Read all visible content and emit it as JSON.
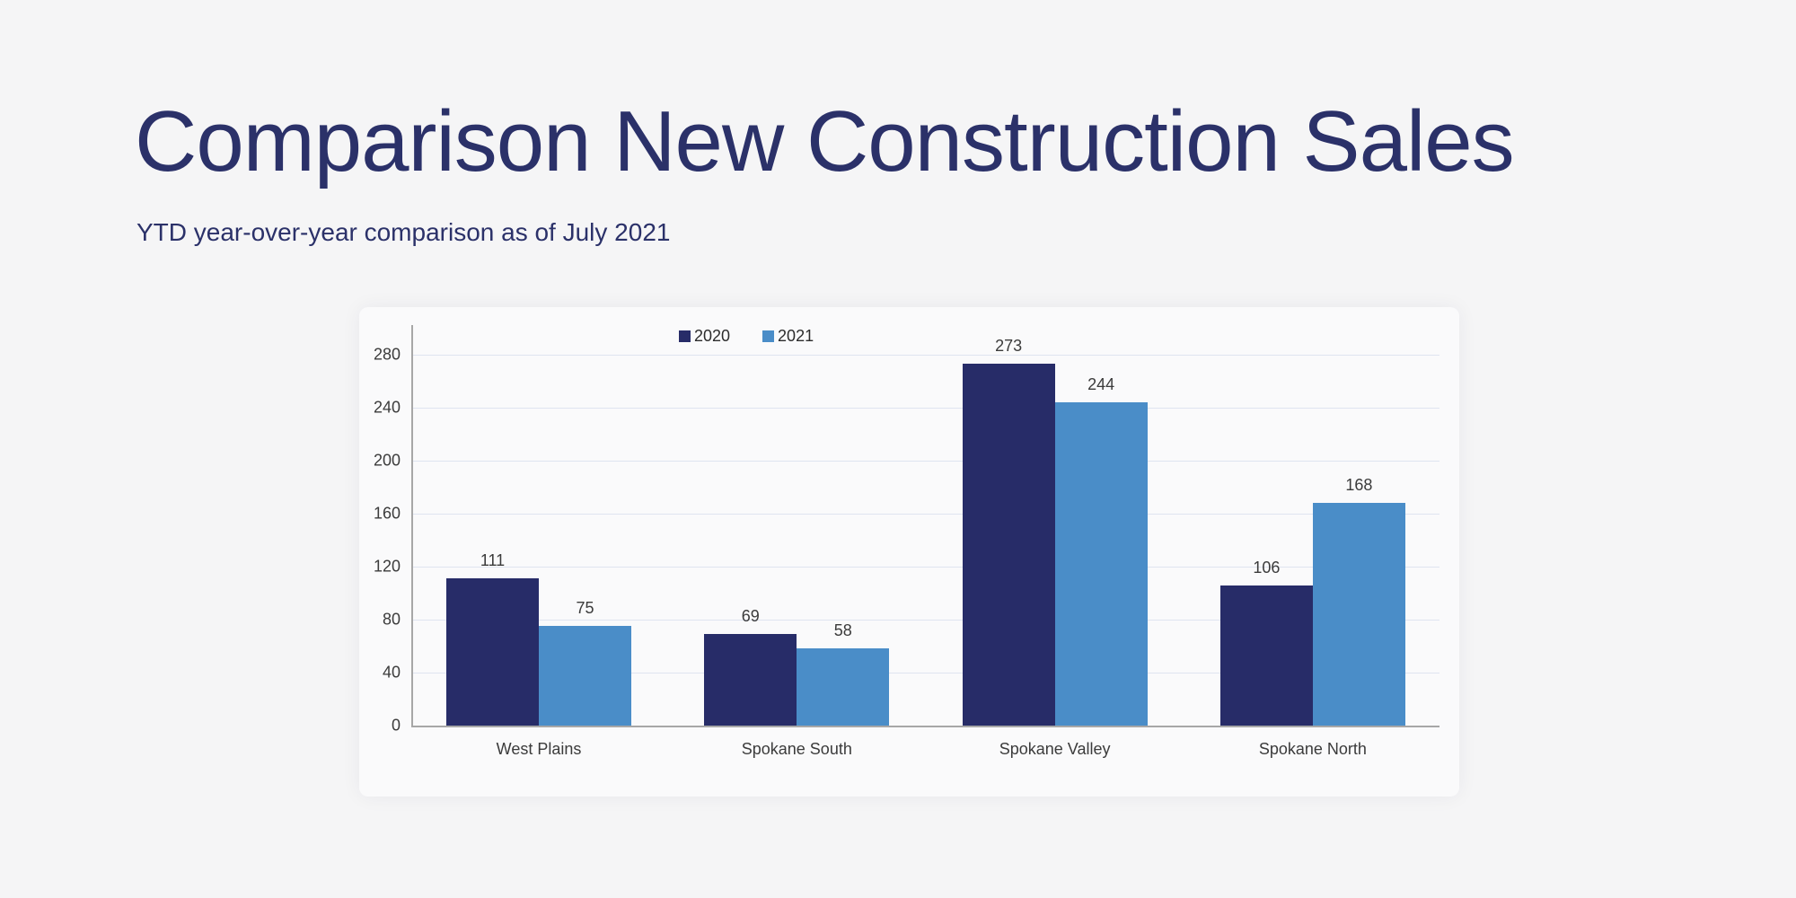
{
  "page": {
    "title": "Comparison New Construction Sales",
    "subtitle": "YTD year-over-year comparison as of July 2021"
  },
  "chart_data": {
    "type": "bar",
    "title": "",
    "categories": [
      "West Plains",
      "Spokane South",
      "Spokane Valley",
      "Spokane North"
    ],
    "series": [
      {
        "name": "2020",
        "color": "#272c68",
        "values": [
          111,
          69,
          273,
          106
        ]
      },
      {
        "name": "2021",
        "color": "#4a8dc8",
        "values": [
          75,
          58,
          244,
          168
        ]
      }
    ],
    "ylim": [
      0,
      280
    ],
    "yticks": [
      0,
      40,
      80,
      120,
      160,
      200,
      240,
      280
    ],
    "xlabel": "",
    "ylabel": "",
    "grid": true,
    "legend_position": "top-center"
  },
  "colors": {
    "background": "#f5f5f6",
    "panel": "#fafafb",
    "title_text": "#2b3169",
    "series_2020": "#272c68",
    "series_2021": "#4a8dc8",
    "gridline": "#dfe4f0",
    "axis_line": "#a7a7a7",
    "label_text": "#3b3b3b"
  }
}
